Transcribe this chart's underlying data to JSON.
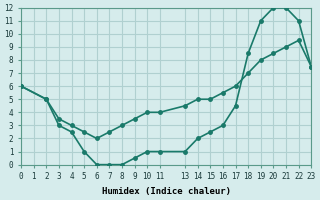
{
  "xlabel": "Humidex (Indice chaleur)",
  "ylabel": "",
  "bg_color": "#d6ecec",
  "grid_color": "#b0d0d0",
  "line_color": "#1a7a6a",
  "xlim": [
    0,
    23
  ],
  "ylim": [
    0,
    12
  ],
  "xticks": [
    0,
    1,
    2,
    3,
    4,
    5,
    6,
    7,
    8,
    9,
    10,
    11,
    13,
    14,
    15,
    16,
    17,
    18,
    19,
    20,
    21,
    22,
    23
  ],
  "yticks": [
    0,
    1,
    2,
    3,
    4,
    5,
    6,
    7,
    8,
    9,
    10,
    11,
    12
  ],
  "line1_x": [
    0,
    2,
    3,
    4,
    5,
    6,
    7,
    8,
    9,
    10,
    11,
    13,
    14,
    15,
    16,
    17,
    18,
    19,
    20,
    21,
    22,
    23
  ],
  "line1_y": [
    6,
    5,
    3,
    2.5,
    1,
    0,
    0,
    0,
    0.5,
    1,
    1,
    1,
    2,
    2.5,
    3,
    4.5,
    8.5,
    11,
    12,
    12,
    11,
    7.5
  ],
  "line2_x": [
    0,
    2,
    3,
    4,
    5,
    6,
    7,
    8,
    9,
    10,
    11,
    13,
    14,
    15,
    16,
    17,
    18,
    19,
    20,
    21,
    22,
    23
  ],
  "line2_y": [
    6,
    5,
    3.5,
    3,
    2.5,
    2,
    2.5,
    3,
    3.5,
    4,
    4,
    4.5,
    5,
    5,
    5.5,
    6,
    7,
    8,
    8.5,
    9,
    9.5,
    7.5
  ]
}
